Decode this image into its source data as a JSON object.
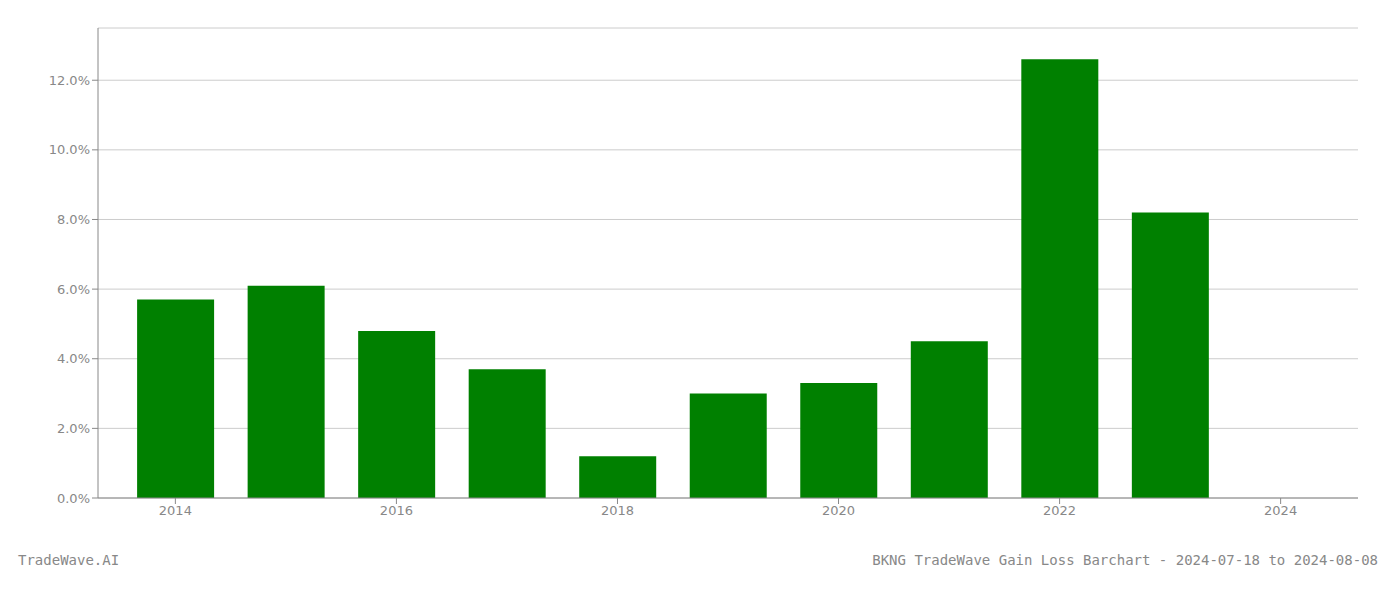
{
  "chart_data": {
    "type": "bar",
    "title": "BKNG TradeWave Gain Loss Barchart - 2024-07-18 to 2024-08-08",
    "annotations": [
      "TradeWave.AI"
    ],
    "x": [
      2014,
      2015,
      2016,
      2017,
      2018,
      2019,
      2020,
      2021,
      2022,
      2023
    ],
    "values": [
      0.057,
      0.061,
      0.048,
      0.037,
      0.012,
      0.03,
      0.033,
      0.045,
      0.126,
      0.082
    ],
    "color": "#008000",
    "xlim": [
      2013.3,
      2024.7
    ],
    "xticks": [
      2014,
      2016,
      2018,
      2020,
      2022,
      2024
    ],
    "ylim": [
      0,
      0.135
    ],
    "yticks": [
      {
        "value": 0.0,
        "label": "0.0%"
      },
      {
        "value": 0.02,
        "label": "2.0%"
      },
      {
        "value": 0.04,
        "label": "4.0%"
      },
      {
        "value": 0.06,
        "label": "6.0%"
      },
      {
        "value": 0.08,
        "label": "8.0%"
      },
      {
        "value": 0.1,
        "label": "10.0%"
      },
      {
        "value": 0.12,
        "label": "12.0%"
      }
    ],
    "grid": true
  }
}
